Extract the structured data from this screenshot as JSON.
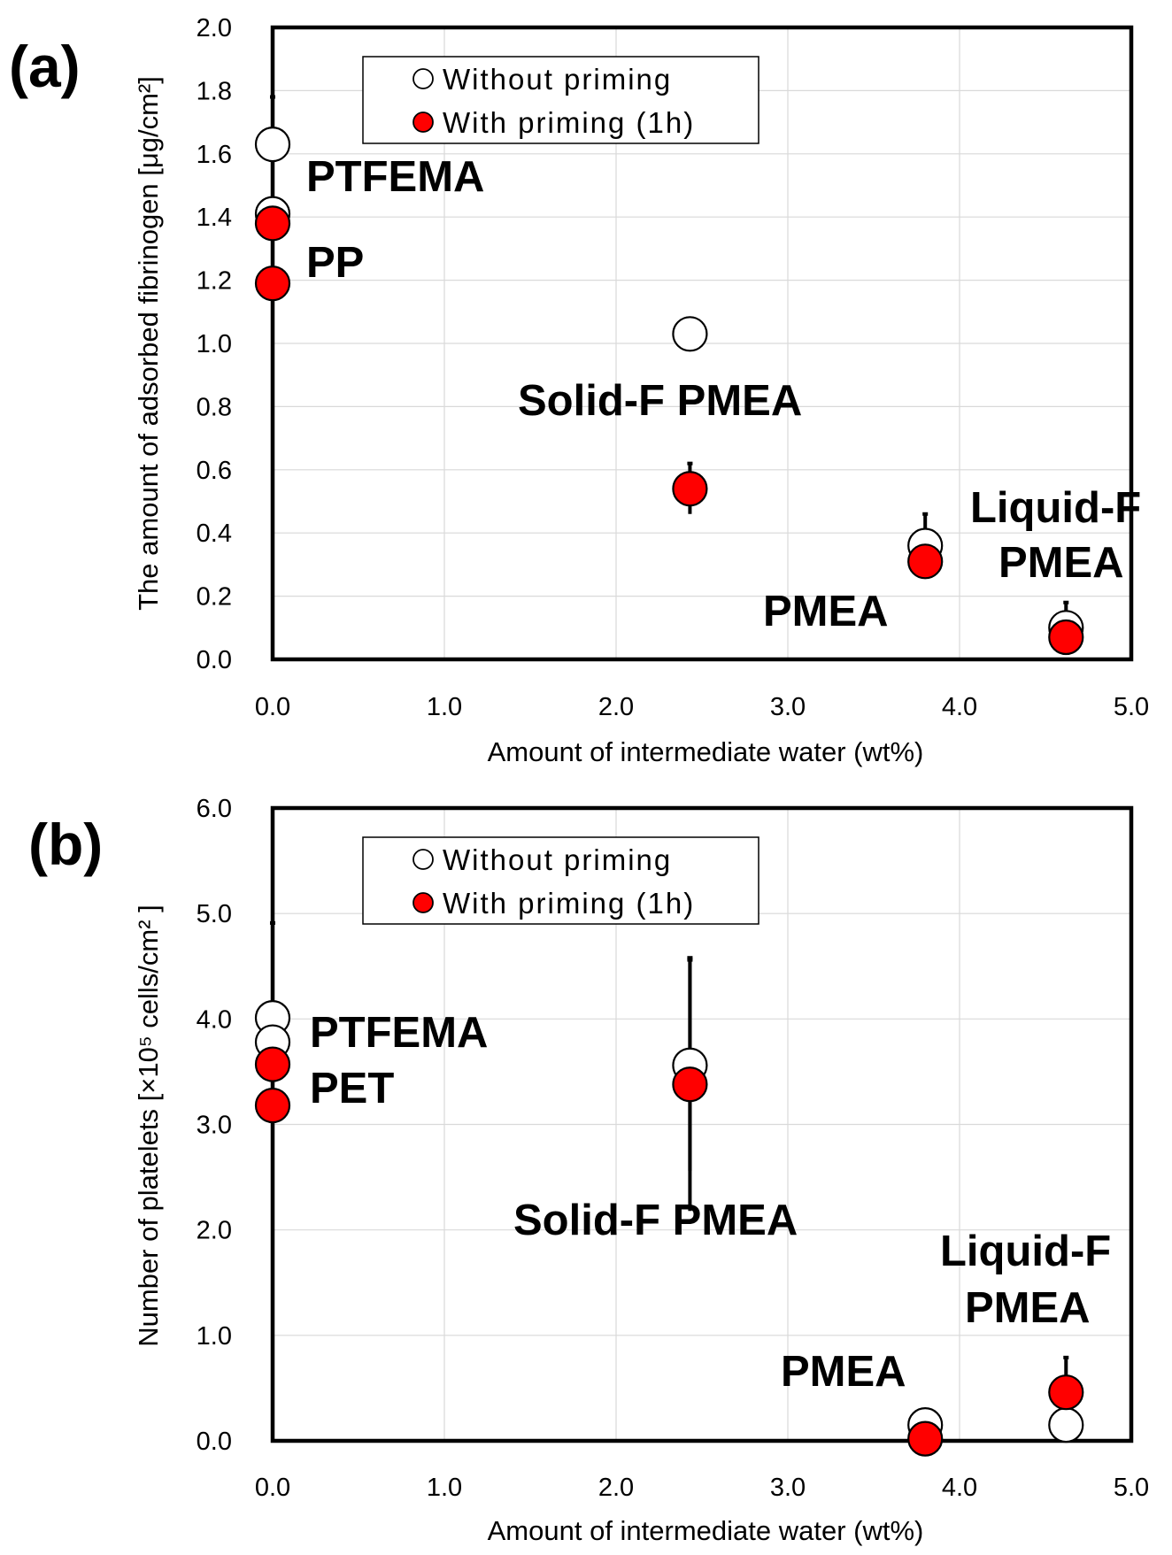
{
  "chart_data": [
    {
      "type": "scatter",
      "panel_label": "(a)",
      "xlabel": "Amount of intermediate water (wt%)",
      "ylabel": "The amount of adsorbed fibrinogen [μg/cm²]",
      "xlim": [
        0,
        5
      ],
      "ylim": [
        0,
        2
      ],
      "x_ticks": [
        "0.0",
        "1.0",
        "2.0",
        "3.0",
        "4.0",
        "5.0"
      ],
      "y_ticks": [
        "0.0",
        "0.2",
        "0.4",
        "0.6",
        "0.8",
        "1.0",
        "1.2",
        "1.4",
        "1.6",
        "1.8",
        "2.0"
      ],
      "grid": true,
      "legend": {
        "position": "top-center",
        "entries": [
          "Without priming",
          "With priming (1h)"
        ]
      },
      "series": [
        {
          "name": "Without priming",
          "marker": "open-circle",
          "color": "#ffffff",
          "points": [
            {
              "x": 0.0,
              "y": 1.63,
              "err": 0.15
            },
            {
              "x": 0.0,
              "y": 1.41,
              "err": 0.0
            },
            {
              "x": 2.43,
              "y": 1.03,
              "err": 0.0
            },
            {
              "x": 3.8,
              "y": 0.36,
              "err": 0.1
            },
            {
              "x": 4.62,
              "y": 0.1,
              "err": 0.08
            }
          ]
        },
        {
          "name": "With priming (1h)",
          "marker": "filled-circle",
          "color": "#ff0000",
          "points": [
            {
              "x": 0.0,
              "y": 1.38,
              "err": 0.0
            },
            {
              "x": 0.0,
              "y": 1.19,
              "err": 0.0
            },
            {
              "x": 2.43,
              "y": 0.54,
              "err": 0.08
            },
            {
              "x": 3.8,
              "y": 0.31,
              "err": 0.0
            },
            {
              "x": 4.62,
              "y": 0.07,
              "err": 0.0
            }
          ]
        }
      ],
      "annotations": [
        {
          "text": "PTFEMA"
        },
        {
          "text": "PP"
        },
        {
          "text": "Solid-F PMEA"
        },
        {
          "text": "Liquid-F"
        },
        {
          "text": "PMEA"
        },
        {
          "text": "PMEA"
        }
      ]
    },
    {
      "type": "scatter",
      "panel_label": "(b)",
      "xlabel": "Amount of intermediate water (wt%)",
      "ylabel": "Number of platelets [×10⁵ cells/cm² ]",
      "xlim": [
        0,
        5
      ],
      "ylim": [
        0,
        6
      ],
      "x_ticks": [
        "0.0",
        "1.0",
        "2.0",
        "3.0",
        "4.0",
        "5.0"
      ],
      "y_ticks": [
        "0.0",
        "1.0",
        "2.0",
        "3.0",
        "4.0",
        "5.0",
        "6.0"
      ],
      "grid": true,
      "legend": {
        "position": "top-center",
        "entries": [
          "Without priming",
          "With priming (1h)"
        ]
      },
      "series": [
        {
          "name": "Without priming",
          "marker": "open-circle",
          "color": "#ffffff",
          "points": [
            {
              "x": 0.0,
              "y": 4.01,
              "err": 0.9
            },
            {
              "x": 0.0,
              "y": 3.78,
              "err": 0.0
            },
            {
              "x": 2.43,
              "y": 3.56,
              "err": 1.0
            },
            {
              "x": 3.8,
              "y": 0.15,
              "err": 0.0
            },
            {
              "x": 4.62,
              "y": 0.15,
              "err": 0.0
            }
          ]
        },
        {
          "name": "With priming (1h)",
          "marker": "filled-circle",
          "color": "#ff0000",
          "points": [
            {
              "x": 0.0,
              "y": 3.57,
              "err": 0.0
            },
            {
              "x": 0.0,
              "y": 3.18,
              "err": 0.85
            },
            {
              "x": 2.43,
              "y": 3.38,
              "err": 1.2
            },
            {
              "x": 3.8,
              "y": 0.02,
              "err": 0.0
            },
            {
              "x": 4.62,
              "y": 0.46,
              "err": 0.33
            }
          ]
        }
      ],
      "annotations": [
        {
          "text": "PTFEMA"
        },
        {
          "text": "PET"
        },
        {
          "text": "Solid-F PMEA"
        },
        {
          "text": "Liquid-F"
        },
        {
          "text": "PMEA"
        },
        {
          "text": "PMEA"
        }
      ]
    }
  ]
}
